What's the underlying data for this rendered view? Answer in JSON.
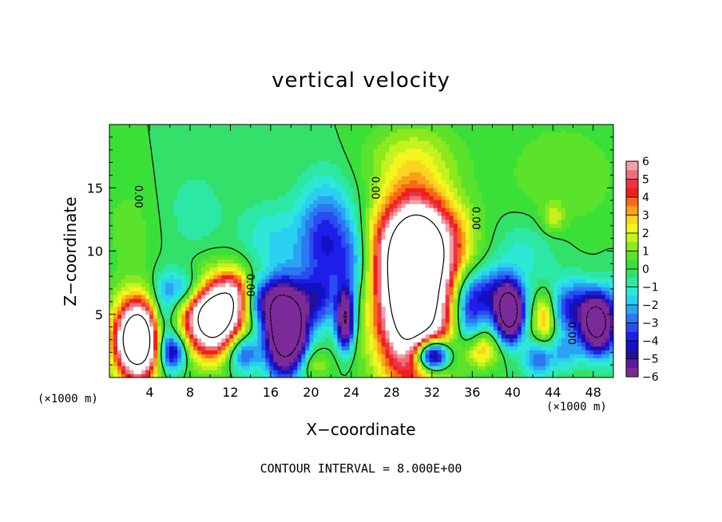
{
  "chart_data": {
    "type": "heatmap",
    "title": "vertical velocity",
    "xlabel": "X−coordinate",
    "ylabel": "Z−coordinate",
    "x_unit_label": "(×1000 m)",
    "z_unit_label": "(×1000 m)",
    "footer": "CONTOUR INTERVAL = 8.000E+00",
    "xlim": [
      0,
      50
    ],
    "ylim": [
      0,
      20
    ],
    "x_ticks": [
      4,
      8,
      12,
      16,
      20,
      24,
      28,
      32,
      36,
      40,
      44,
      48
    ],
    "y_ticks": [
      5,
      10,
      15
    ],
    "contour_label": "0.00",
    "colorbar": {
      "range": [
        -6,
        6
      ],
      "tick_labels": [
        "6",
        "5",
        "4",
        "3",
        "2",
        "1",
        "0",
        "−1",
        "−2",
        "−3",
        "−4",
        "−5",
        "−6"
      ],
      "levels": [
        {
          "min": 5.5,
          "color": "#f3a0a6"
        },
        {
          "min": 5.0,
          "color": "#ee6e78"
        },
        {
          "min": 4.5,
          "color": "#ea3546"
        },
        {
          "min": 4.0,
          "color": "#f21e1e"
        },
        {
          "min": 3.5,
          "color": "#f76a14"
        },
        {
          "min": 3.0,
          "color": "#faa01a"
        },
        {
          "min": 2.5,
          "color": "#fad51e"
        },
        {
          "min": 2.0,
          "color": "#f2f51e"
        },
        {
          "min": 1.5,
          "color": "#c4f21e"
        },
        {
          "min": 1.0,
          "color": "#8de81e"
        },
        {
          "min": 0.5,
          "color": "#5ae32a"
        },
        {
          "min": 0.0,
          "color": "#3ae038"
        },
        {
          "min": -0.5,
          "color": "#33e06a"
        },
        {
          "min": -1.0,
          "color": "#2de8a5"
        },
        {
          "min": -1.5,
          "color": "#2de8d6"
        },
        {
          "min": -2.0,
          "color": "#2ad0f2"
        },
        {
          "min": -2.5,
          "color": "#2aa4f2"
        },
        {
          "min": -3.0,
          "color": "#2a78f2"
        },
        {
          "min": -3.5,
          "color": "#2a4cf0"
        },
        {
          "min": -4.0,
          "color": "#1e1ee8"
        },
        {
          "min": -4.5,
          "color": "#1410c8"
        },
        {
          "min": -5.0,
          "color": "#20109a"
        },
        {
          "min": -5.5,
          "color": "#5a1a9c"
        },
        {
          "min": -9999,
          "color": "#7c2a9a"
        }
      ]
    },
    "features": [
      {
        "x": 2.8,
        "z": 3.0,
        "sx": 1.6,
        "sz": 2.2,
        "amp": 12
      },
      {
        "x": 10.3,
        "z": 4.8,
        "sx": 2.0,
        "sz": 2.1,
        "amp": 11
      },
      {
        "x": 12.6,
        "z": 6.6,
        "sx": 1.2,
        "sz": 1.4,
        "amp": 4
      },
      {
        "x": 30.2,
        "z": 6.8,
        "sx": 2.6,
        "sz": 4.8,
        "amp": 12
      },
      {
        "x": 31.2,
        "z": 10.8,
        "sx": 3.2,
        "sz": 2.2,
        "amp": 4
      },
      {
        "x": 17.3,
        "z": 3.8,
        "sx": 1.2,
        "sz": 2.3,
        "amp": -12
      },
      {
        "x": 15.0,
        "z": 6.0,
        "sx": 1.7,
        "sz": 1.3,
        "amp": -4
      },
      {
        "x": 32.0,
        "z": 1.8,
        "sx": 1.2,
        "sz": 0.9,
        "amp": -10
      },
      {
        "x": 39.7,
        "z": 5.1,
        "sx": 0.9,
        "sz": 1.5,
        "amp": -10
      },
      {
        "x": 37.5,
        "z": 6.5,
        "sx": 2.0,
        "sz": 1.5,
        "amp": -4
      },
      {
        "x": 48.3,
        "z": 4.2,
        "sx": 1.0,
        "sz": 1.5,
        "amp": -9
      },
      {
        "x": 46.0,
        "z": 5.5,
        "sx": 1.8,
        "sz": 1.5,
        "amp": -4
      },
      {
        "x": 23.4,
        "z": 4.6,
        "sx": 0.6,
        "sz": 1.6,
        "amp": -8
      },
      {
        "x": 21.5,
        "z": 10.8,
        "sx": 2.0,
        "sz": 3.2,
        "amp": -4
      },
      {
        "x": 24.2,
        "z": 9.0,
        "sx": 1.2,
        "sz": 2.2,
        "amp": -2
      },
      {
        "x": 5.3,
        "z": 4.2,
        "sx": 0.9,
        "sz": 2.2,
        "amp": -3
      },
      {
        "x": 7.5,
        "z": 7.0,
        "sx": 1.8,
        "sz": 1.1,
        "amp": -3
      },
      {
        "x": 6.3,
        "z": 2.0,
        "sx": 0.9,
        "sz": 1.0,
        "amp": -5
      },
      {
        "x": 13.2,
        "z": 2.0,
        "sx": 1.2,
        "sz": 1.1,
        "amp": -4
      },
      {
        "x": 20.5,
        "z": 6.0,
        "sx": 1.2,
        "sz": 1.5,
        "amp": -3
      },
      {
        "x": 20.3,
        "z": 1.0,
        "sx": 1.2,
        "sz": 0.8,
        "amp": 1.5
      },
      {
        "x": 18.8,
        "z": 4.0,
        "sx": 0.8,
        "sz": 2.0,
        "amp": -3
      },
      {
        "x": 43.2,
        "z": 4.8,
        "sx": 0.8,
        "sz": 1.4,
        "amp": 4
      },
      {
        "x": 36.8,
        "z": 2.2,
        "sx": 1.3,
        "sz": 1.0,
        "amp": 3
      },
      {
        "x": 42.5,
        "z": 1.5,
        "sx": 1.0,
        "sz": 1.0,
        "amp": -3
      },
      {
        "x": 45.2,
        "z": 2.0,
        "sx": 1.2,
        "sz": 1.0,
        "amp": -2
      },
      {
        "x": 49.7,
        "z": 4.5,
        "sx": 0.8,
        "sz": 2.2,
        "amp": -2
      },
      {
        "x": 35.5,
        "z": 4.5,
        "sx": 1.0,
        "sz": 2.0,
        "amp": -3
      },
      {
        "x": 16.0,
        "z": 11.0,
        "sx": 2.0,
        "sz": 2.0,
        "amp": -1.4
      },
      {
        "x": 30.0,
        "z": 17.5,
        "sx": 3.5,
        "sz": 2.0,
        "amp": 1.3
      },
      {
        "x": 41.0,
        "z": 10.0,
        "sx": 2.5,
        "sz": 2.0,
        "amp": -1.2
      },
      {
        "x": 45.0,
        "z": 16.0,
        "sx": 4.0,
        "sz": 3.0,
        "amp": 1.0
      },
      {
        "x": 44.0,
        "z": 12.6,
        "sx": 0.8,
        "sz": 0.8,
        "amp": 1.6
      },
      {
        "x": 8.0,
        "z": 13.0,
        "sx": 3.0,
        "sz": 3.0,
        "amp": -0.8
      },
      {
        "x": 2.5,
        "z": 12.0,
        "sx": 2.5,
        "sz": 3.0,
        "amp": 0.8
      }
    ]
  }
}
